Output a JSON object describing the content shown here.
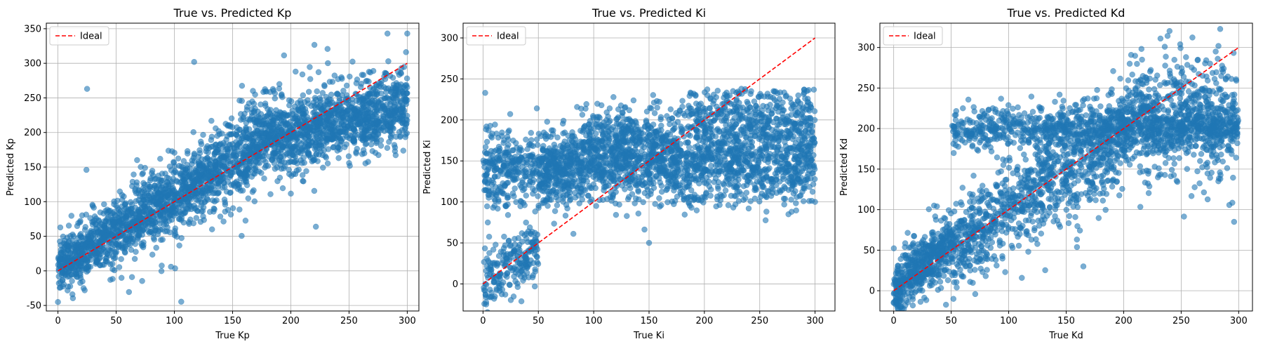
{
  "figure": {
    "background": "#ffffff"
  },
  "chart_data": [
    {
      "type": "scatter",
      "title": "True vs. Predicted Kp",
      "xlabel": "True Kp",
      "ylabel": "Predicted Kp",
      "xlim": [
        -10,
        310
      ],
      "ylim": [
        -58,
        358
      ],
      "xticks": [
        0,
        50,
        100,
        150,
        200,
        250,
        300
      ],
      "yticks": [
        -50,
        0,
        50,
        100,
        150,
        200,
        250,
        300,
        350
      ],
      "grid": true,
      "legend": {
        "position": "top-left",
        "entries": [
          "Ideal"
        ]
      },
      "series": [
        {
          "name": "",
          "color": "#1f77b4",
          "alpha": 0.6,
          "count": 3000,
          "description_pattern": "points cluster along y≈x for low/mid x, flatten near 200–230 for high x"
        },
        {
          "name": "Ideal",
          "line": [
            [
              0,
              0
            ],
            [
              300,
              300
            ]
          ],
          "color": "#ff0000",
          "style": "dashed"
        }
      ],
      "notable_points": [
        [
          283,
          343
        ],
        [
          300,
          343
        ],
        [
          25,
          263
        ],
        [
          117,
          302
        ],
        [
          0,
          -45
        ],
        [
          45,
          -13
        ],
        [
          22,
          -25
        ]
      ]
    },
    {
      "type": "scatter",
      "title": "True vs. Predicted Ki",
      "xlabel": "True Ki",
      "ylabel": "Predicted Ki",
      "xlim": [
        -18,
        318
      ],
      "ylim": [
        -33,
        318
      ],
      "xticks": [
        0,
        50,
        100,
        150,
        200,
        250,
        300
      ],
      "yticks": [
        0,
        50,
        100,
        150,
        200,
        250,
        300
      ],
      "grid": true,
      "legend": {
        "position": "top-left",
        "entries": [
          "Ideal"
        ]
      },
      "series": [
        {
          "name": "",
          "color": "#1f77b4",
          "alpha": 0.6,
          "count": 3000,
          "description_pattern": "two bands near 140 and 200, low-x points near 0–50"
        },
        {
          "name": "Ideal",
          "line": [
            [
              0,
              0
            ],
            [
              300,
              300
            ]
          ],
          "color": "#ff0000",
          "style": "dashed"
        }
      ],
      "notable_points": [
        [
          2,
          233
        ],
        [
          10,
          -18
        ],
        [
          150,
          50
        ],
        [
          240,
          92
        ],
        [
          300,
          100
        ]
      ]
    },
    {
      "type": "scatter",
      "title": "True vs. Predicted Kd",
      "xlabel": "True Kd",
      "ylabel": "Predicted Kd",
      "xlim": [
        -12,
        312
      ],
      "ylim": [
        -25,
        330
      ],
      "xticks": [
        0,
        50,
        100,
        150,
        200,
        250,
        300
      ],
      "yticks": [
        0,
        50,
        100,
        150,
        200,
        250,
        300
      ],
      "grid": true,
      "legend": {
        "position": "top-left",
        "entries": [
          "Ideal"
        ]
      },
      "series": [
        {
          "name": "",
          "color": "#1f77b4",
          "alpha": 0.6,
          "count": 3000,
          "description_pattern": "follows y≈x for low x, band at 200 for x>50, saturating ~210–230"
        },
        {
          "name": "Ideal",
          "line": [
            [
              0,
              0
            ],
            [
              300,
              300
            ]
          ],
          "color": "#ff0000",
          "style": "dashed"
        }
      ],
      "notable_points": [
        [
          232,
          311
        ],
        [
          0,
          -15
        ],
        [
          296,
          85
        ],
        [
          280,
          295
        ],
        [
          80,
          18
        ]
      ]
    }
  ]
}
